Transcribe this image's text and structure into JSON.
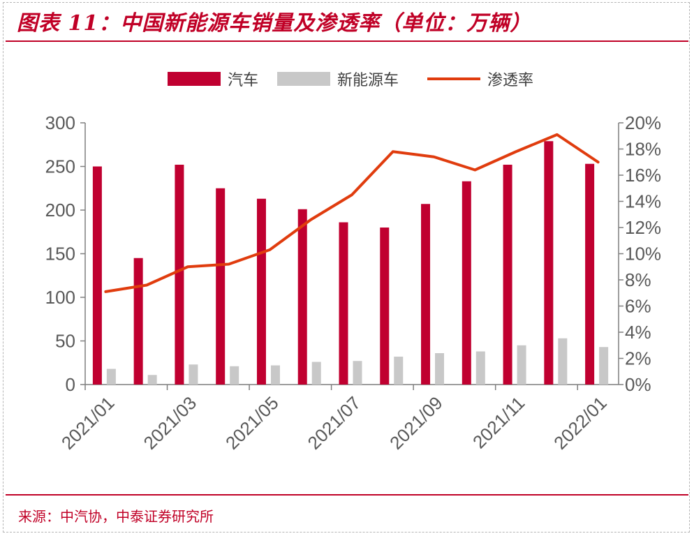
{
  "title": "图表 11：中国新能源车销量及渗透率（单位：万辆）",
  "source": "来源：中汽协，中泰证券研究所",
  "colors": {
    "accent": "#c00026",
    "bar_auto": "#c00030",
    "bar_nev": "#c8c8c8",
    "line_penetration": "#e03c0e",
    "axis": "#7f7f7f",
    "tick_text": "#595959"
  },
  "chart_data": {
    "type": "bar",
    "categories": [
      "2021/01",
      "2021/02",
      "2021/03",
      "2021/04",
      "2021/05",
      "2021/06",
      "2021/07",
      "2021/08",
      "2021/09",
      "2021/10",
      "2021/11",
      "2021/12",
      "2022/01"
    ],
    "x_tick_labels": [
      "2021/01",
      "2021/03",
      "2021/05",
      "2021/07",
      "2021/09",
      "2021/11",
      "2022/01"
    ],
    "series": [
      {
        "name": "汽车",
        "type": "bar",
        "axis": "left",
        "values": [
          250,
          145,
          252,
          225,
          213,
          201,
          186,
          180,
          207,
          233,
          252,
          279,
          253
        ]
      },
      {
        "name": "新能源车",
        "type": "bar",
        "axis": "left",
        "values": [
          18,
          11,
          23,
          21,
          22,
          26,
          27,
          32,
          36,
          38,
          45,
          53,
          43
        ]
      },
      {
        "name": "渗透率",
        "type": "line",
        "axis": "right",
        "values": [
          7.1,
          7.6,
          9.0,
          9.2,
          10.3,
          12.6,
          14.5,
          17.8,
          17.4,
          16.4,
          17.8,
          19.1,
          17.0
        ]
      }
    ],
    "y_left": {
      "min": 0,
      "max": 300,
      "ticks": [
        0,
        50,
        100,
        150,
        200,
        250,
        300
      ]
    },
    "y_right": {
      "min": 0,
      "max": 20,
      "ticks": [
        "0%",
        "2%",
        "4%",
        "6%",
        "8%",
        "10%",
        "12%",
        "14%",
        "16%",
        "18%",
        "20%"
      ]
    },
    "legend": [
      "汽车",
      "新能源车",
      "渗透率"
    ],
    "legend_position": "top-center",
    "grid": false
  }
}
